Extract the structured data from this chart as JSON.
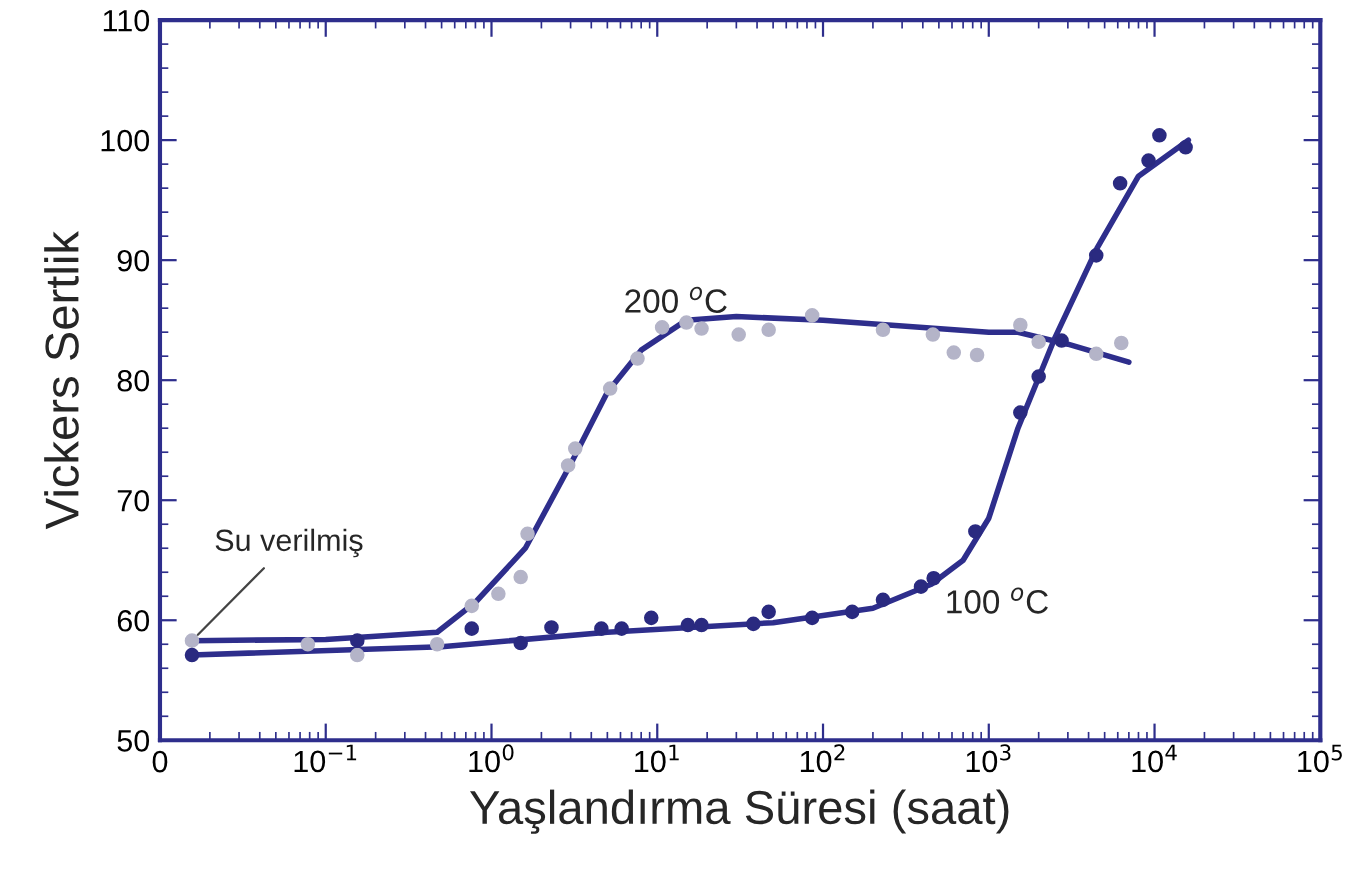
{
  "chart_data": {
    "type": "scatter",
    "xlabel": "Yaşlandırma Süresi (saat)",
    "ylabel": "Vickers Sertlik",
    "log": "x",
    "xlim": [
      0.01,
      100000
    ],
    "ylim": [
      50,
      110
    ],
    "xticks": [
      {
        "value": 0.01,
        "label": "0"
      },
      {
        "value": 0.1,
        "label": "10$^{−1}$"
      },
      {
        "value": 1,
        "label": "10$^{0}$"
      },
      {
        "value": 10,
        "label": "10$^{1}$"
      },
      {
        "value": 100,
        "label": "10$^{2}$"
      },
      {
        "value": 1000,
        "label": "10$^{3}$"
      },
      {
        "value": 10000,
        "label": "10$^{4}$"
      },
      {
        "value": 100000,
        "label": "10$^{5}$"
      }
    ],
    "yticks": [
      50,
      60,
      70,
      80,
      90,
      100,
      110
    ],
    "grid": false,
    "legend": false,
    "annotations": [
      {
        "text": "200 $^{o}$C",
        "x": 7.6,
        "y": 81.8
      },
      {
        "text": "100 $^{o}$C",
        "x": 465,
        "y": 63.5
      },
      {
        "text": "Su verilmiş",
        "x": 0.0156,
        "y": 58.3
      }
    ],
    "series": [
      {
        "marker": "circle",
        "color": "#b4b4c8",
        "x": [
          0.0156,
          0.078,
          0.155,
          0.47,
          0.76,
          1.1,
          1.5,
          1.65,
          2.9,
          3.2,
          5.2,
          7.6,
          10.7,
          15,
          18.5,
          31,
          47,
          86,
          230,
          460,
          615,
          850,
          1550,
          2000,
          4450,
          6300
        ],
        "values": [
          58.3,
          58.0,
          57.1,
          58,
          61.2,
          62.2,
          63.6,
          67.2,
          72.9,
          74.3,
          79.3,
          81.8,
          84.4,
          84.8,
          84.3,
          83.8,
          84.2,
          85.4,
          84.2,
          83.8,
          82.3,
          82.1,
          84.6,
          83.2,
          82.2,
          83.1
        ]
      },
      {
        "marker": "circle",
        "color": "#2a2a80",
        "x": [
          0.0156,
          0.155,
          0.76,
          1.5,
          2.3,
          4.6,
          6.1,
          9.2,
          15.3,
          18.5,
          38,
          47,
          86,
          150,
          230,
          390,
          465,
          830,
          1550,
          2000,
          2750,
          4450,
          6200,
          9200,
          10700,
          15400
        ],
        "values": [
          57.1,
          58.3,
          59.3,
          58.1,
          59.4,
          59.3,
          59.3,
          60.2,
          59.6,
          59.6,
          59.7,
          60.7,
          60.2,
          60.7,
          61.7,
          62.8,
          63.5,
          67.4,
          77.3,
          80.3,
          83.3,
          90.4,
          96.4,
          98.3,
          100.4,
          99.4
        ]
      },
      {
        "type": "line",
        "line_style": "solid",
        "marker": "none",
        "color": "#2e2e8c",
        "x": [
          0.0156,
          0.1,
          0.47,
          0.8,
          1.6,
          3,
          5,
          8,
          15,
          30,
          100,
          1000,
          1500,
          3000,
          7000
        ],
        "values": [
          58.3,
          58.4,
          59,
          61.5,
          66,
          73,
          79,
          82.5,
          85,
          85.3,
          85.0,
          84,
          84,
          83,
          81.5
        ]
      },
      {
        "type": "line",
        "line_style": "solid",
        "marker": "none",
        "color": "#2e2e8c",
        "x": [
          0.0156,
          0.5,
          5,
          50,
          200,
          450,
          700,
          1000,
          1500,
          2500,
          4500,
          8000,
          16000
        ],
        "values": [
          57.1,
          57.8,
          59,
          59.8,
          61,
          63,
          65,
          68.5,
          76,
          83.5,
          91,
          97,
          100
        ]
      }
    ]
  }
}
